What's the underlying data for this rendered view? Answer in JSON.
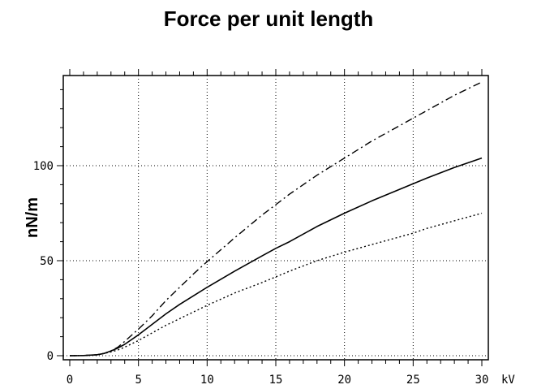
{
  "chart_data": {
    "type": "line",
    "title": "Force per unit length",
    "xlabel": "kV",
    "ylabel": "nN/m",
    "xlim": [
      0,
      30
    ],
    "ylim": [
      -2,
      148
    ],
    "x_ticks": [
      0,
      5,
      10,
      15,
      20,
      25,
      30
    ],
    "y_ticks": [
      0,
      50,
      100
    ],
    "grid": true,
    "x": [
      0,
      1,
      2,
      2.5,
      3,
      3.5,
      4,
      5,
      6,
      7,
      8,
      9,
      10,
      12,
      14,
      15,
      16,
      18,
      20,
      22,
      24,
      25,
      26,
      28,
      30
    ],
    "series": [
      {
        "style": "dashdot",
        "values": [
          0,
          0.1,
          0.5,
          1.2,
          2.5,
          4.5,
          7.5,
          14,
          21,
          29,
          36,
          43,
          49.5,
          62,
          74,
          79.5,
          85,
          95,
          104,
          113,
          121,
          125,
          129,
          137,
          144
        ]
      },
      {
        "style": "solid",
        "values": [
          0,
          0.1,
          0.5,
          1.2,
          2.5,
          4,
          6,
          11,
          16.5,
          22,
          27,
          31.5,
          36,
          44.5,
          52.5,
          56.5,
          60,
          68,
          75,
          81.5,
          87.5,
          90.5,
          93.5,
          99,
          104
        ]
      },
      {
        "style": "dotted",
        "values": [
          0,
          0.1,
          0.5,
          1.2,
          2,
          3,
          4.5,
          8,
          12,
          16,
          19.5,
          23,
          26.5,
          33,
          38.5,
          41.5,
          44.5,
          50,
          54.5,
          58.5,
          62.5,
          64.5,
          67,
          71,
          75
        ]
      }
    ]
  }
}
